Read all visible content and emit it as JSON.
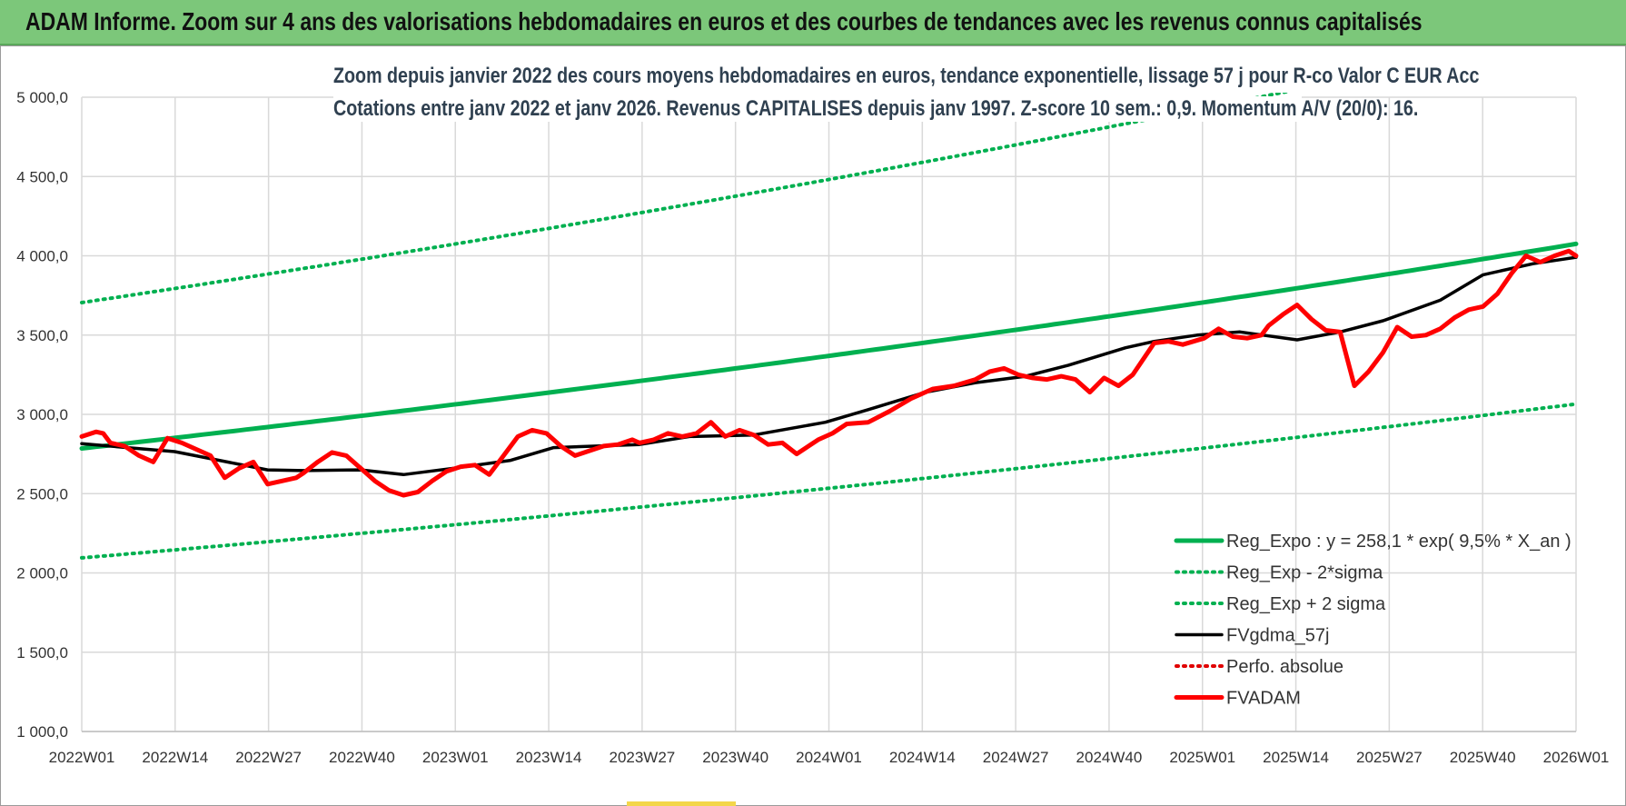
{
  "header": {
    "title": "ADAM Informe. Zoom sur 4 ans des valorisations hebdomadaires en euros et des courbes de tendances avec les revenus connus capitalisés"
  },
  "chart_data": {
    "type": "line",
    "title_line1": "Zoom depuis janvier 2022 des cours moyens hebdomadaires en euros, tendance exponentielle, lissage 57 j pour R-co Valor C EUR Acc",
    "title_line2": "Cotations entre janv 2022 et janv 2026. Revenus CAPITALISES depuis janv 1997. Z-score 10 sem.: 0,9. Momentum A/V (20/0): 16.",
    "ylim": [
      1000,
      5000
    ],
    "yticks": [
      "1 000,0",
      "1 500,0",
      "2 000,0",
      "2 500,0",
      "3 000,0",
      "3 500,0",
      "4 000,0",
      "4 500,0",
      "5 000,0"
    ],
    "xtick_labels": [
      "2022W01",
      "2022W14",
      "2022W27",
      "2022W40",
      "2023W01",
      "2023W14",
      "2023W27",
      "2023W40",
      "2024W01",
      "2024W14",
      "2024W27",
      "2024W40",
      "2025W01",
      "2025W14",
      "2025W27",
      "2025W40",
      "2026W01"
    ],
    "xlim_weeks": [
      0,
      209
    ],
    "grid": true,
    "legend_position": "bottom-right",
    "series": [
      {
        "name": "Reg_Expo : y = 258,1 * exp( 9,5% *  X_an )",
        "color": "#00b050",
        "style": "solid",
        "x": [
          0,
          209
        ],
        "y": [
          2785,
          4075
        ],
        "shape": "exponential"
      },
      {
        "name": "Reg_Exp - 2*sigma",
        "color": "#00b050",
        "style": "dotted",
        "x": [
          0,
          209
        ],
        "y": [
          2095,
          3065
        ],
        "shape": "exponential"
      },
      {
        "name": "Reg_Exp + 2 sigma",
        "color": "#00b050",
        "style": "dotted",
        "x": [
          0,
          209
        ],
        "y": [
          3705,
          5420
        ],
        "shape": "exponential"
      },
      {
        "name": "FVgdma_57j",
        "color": "#000000",
        "style": "solid",
        "x": [
          0,
          13,
          26,
          31,
          39,
          45,
          52,
          60,
          66,
          78,
          85,
          94,
          104,
          110,
          118,
          125,
          132,
          138,
          146,
          150,
          156,
          162,
          170,
          176,
          182,
          190,
          196,
          203,
          209
        ],
        "y": [
          2815,
          2765,
          2650,
          2645,
          2650,
          2620,
          2660,
          2710,
          2790,
          2810,
          2860,
          2870,
          2950,
          3030,
          3140,
          3200,
          3240,
          3310,
          3420,
          3460,
          3500,
          3520,
          3470,
          3520,
          3590,
          3720,
          3880,
          3950,
          3990
        ]
      },
      {
        "name": "Perfo. absolue",
        "color": "#e00000",
        "style": "dotted",
        "x": [],
        "y": []
      },
      {
        "name": "FVADAM",
        "color": "#ff0000",
        "style": "solid",
        "x": [
          0,
          2,
          3,
          4,
          6,
          8,
          10,
          12,
          14,
          16,
          18,
          20,
          22,
          24,
          26,
          28,
          30,
          31,
          33,
          35,
          37,
          39,
          41,
          43,
          45,
          47,
          49,
          51,
          53,
          55,
          57,
          59,
          61,
          63,
          65,
          67,
          69,
          71,
          73,
          75,
          77,
          78,
          80,
          82,
          84,
          86,
          88,
          90,
          92,
          94,
          96,
          98,
          100,
          103,
          105,
          107,
          110,
          113,
          116,
          119,
          122,
          125,
          127,
          129,
          131,
          133,
          135,
          137,
          139,
          141,
          143,
          145,
          147,
          150,
          152,
          154,
          157,
          159,
          161,
          163,
          165,
          166,
          168,
          170,
          172,
          174,
          176,
          178,
          180,
          182,
          184,
          186,
          188,
          190,
          192,
          194,
          196,
          198,
          200,
          202,
          204,
          206,
          208,
          209
        ],
        "y": [
          2860,
          2890,
          2880,
          2820,
          2800,
          2740,
          2700,
          2850,
          2820,
          2780,
          2740,
          2600,
          2660,
          2700,
          2560,
          2580,
          2600,
          2630,
          2700,
          2760,
          2740,
          2660,
          2580,
          2520,
          2490,
          2510,
          2580,
          2640,
          2670,
          2680,
          2620,
          2740,
          2860,
          2900,
          2880,
          2800,
          2740,
          2770,
          2800,
          2810,
          2840,
          2820,
          2840,
          2880,
          2860,
          2880,
          2950,
          2860,
          2900,
          2870,
          2810,
          2820,
          2750,
          2840,
          2880,
          2940,
          2950,
          3020,
          3100,
          3160,
          3180,
          3220,
          3270,
          3290,
          3250,
          3230,
          3220,
          3240,
          3220,
          3140,
          3230,
          3180,
          3250,
          3450,
          3460,
          3440,
          3480,
          3540,
          3490,
          3480,
          3500,
          3560,
          3630,
          3690,
          3600,
          3530,
          3520,
          3180,
          3270,
          3390,
          3550,
          3490,
          3500,
          3540,
          3610,
          3660,
          3680,
          3760,
          3890,
          4000,
          3960,
          4000,
          4030,
          4000
        ]
      }
    ]
  }
}
